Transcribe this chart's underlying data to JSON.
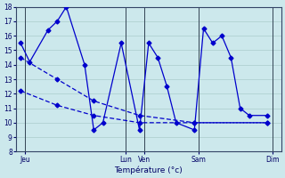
{
  "background_color": "#cce8ec",
  "grid_color": "#aacccc",
  "line_color": "#0000cc",
  "xlabel": "Température (°c)",
  "ylim": [
    8,
    18
  ],
  "yticks": [
    8,
    9,
    10,
    11,
    12,
    13,
    14,
    15,
    16,
    17,
    18
  ],
  "day_labels": [
    "Jeu",
    "Lun",
    "Ven",
    "Sam",
    "Dim"
  ],
  "vline_positions": [
    0.5,
    11.5,
    13.5,
    19.5,
    27.5
  ],
  "tick_positions": [
    0.5,
    11.5,
    13.5,
    19.5,
    27.5
  ],
  "xlim": [
    -0.5,
    28.5
  ],
  "series1_x": [
    0,
    1,
    3,
    4,
    5,
    7,
    8,
    9,
    11,
    13,
    14,
    15,
    16,
    17,
    19,
    20,
    21,
    22,
    23,
    24,
    25,
    27
  ],
  "series1_y": [
    15.5,
    14.2,
    16.4,
    17.0,
    18.0,
    14.0,
    9.5,
    10.0,
    15.5,
    9.5,
    15.5,
    14.5,
    12.5,
    10.0,
    9.5,
    16.5,
    15.5,
    16.0,
    14.5,
    11.0,
    10.5,
    10.5
  ],
  "series2_x": [
    0,
    4,
    8,
    13,
    19,
    27
  ],
  "series2_y": [
    14.5,
    13.0,
    11.5,
    10.5,
    10.0,
    10.0
  ],
  "series3_x": [
    0,
    4,
    8,
    13,
    19,
    27
  ],
  "series3_y": [
    12.2,
    11.2,
    10.5,
    10.0,
    10.0,
    10.0
  ]
}
